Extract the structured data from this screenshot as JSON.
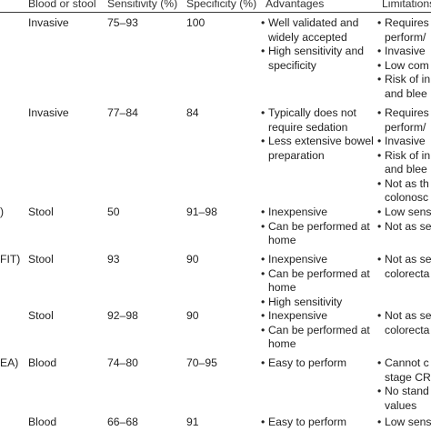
{
  "header": {
    "specimen": "Blood or stool",
    "sensitivity": "Sensitivity (%)",
    "specificity": "Specificity (%)",
    "advantages": "Advantages",
    "limitations": "Limitations"
  },
  "rows": [
    {
      "label": "",
      "specimen": "Invasive",
      "sensitivity": "75–93",
      "specificity": "100",
      "advantages": [
        "Well validated and",
        "widely accepted",
        "High sensitivity and",
        "specificity"
      ],
      "limitations": [
        "Requires",
        "perform/",
        "Invasive",
        "Low com",
        "Risk of in",
        "and blee"
      ]
    },
    {
      "label": "",
      "specimen": "Invasive",
      "sensitivity": "77–84",
      "specificity": "84",
      "advantages": [
        "Typically does not",
        "require sedation",
        "Less extensive bowel",
        "preparation"
      ],
      "limitations": [
        "Requires",
        "perform/",
        "Invasive",
        "Risk of in",
        "and blee",
        "Not as th",
        "colonosc"
      ]
    },
    {
      "label": ")",
      "specimen": "Stool",
      "sensitivity": "50",
      "specificity": "91–98",
      "advantages": [
        "Inexpensive",
        "Can be performed at",
        "home"
      ],
      "limitations": [
        "Low sens",
        "Not as se"
      ]
    },
    {
      "label": "FIT)",
      "specimen": "Stool",
      "sensitivity": "93",
      "specificity": "90",
      "advantages": [
        "Inexpensive",
        "Can be performed at",
        "home",
        "High sensitivity"
      ],
      "limitations": [
        "Not as se",
        "colorecta"
      ]
    },
    {
      "label": "",
      "specimen": "Stool",
      "sensitivity": "92–98",
      "specificity": "90",
      "advantages": [
        "Inexpensive",
        "Can be performed at",
        "home"
      ],
      "limitations": [
        "Not as se",
        "colorecta"
      ]
    },
    {
      "label": "EA)",
      "specimen": "Blood",
      "sensitivity": "74–80",
      "specificity": "70–95",
      "advantages": [
        "Easy to perform"
      ],
      "limitations": [
        "Cannot c",
        "stage CR",
        "No stand",
        "values"
      ]
    },
    {
      "label": "",
      "specimen": "Blood",
      "sensitivity": "66–68",
      "specificity": "91",
      "advantages": [
        "Easy to perform"
      ],
      "limitations": [
        "Low sens"
      ]
    }
  ]
}
